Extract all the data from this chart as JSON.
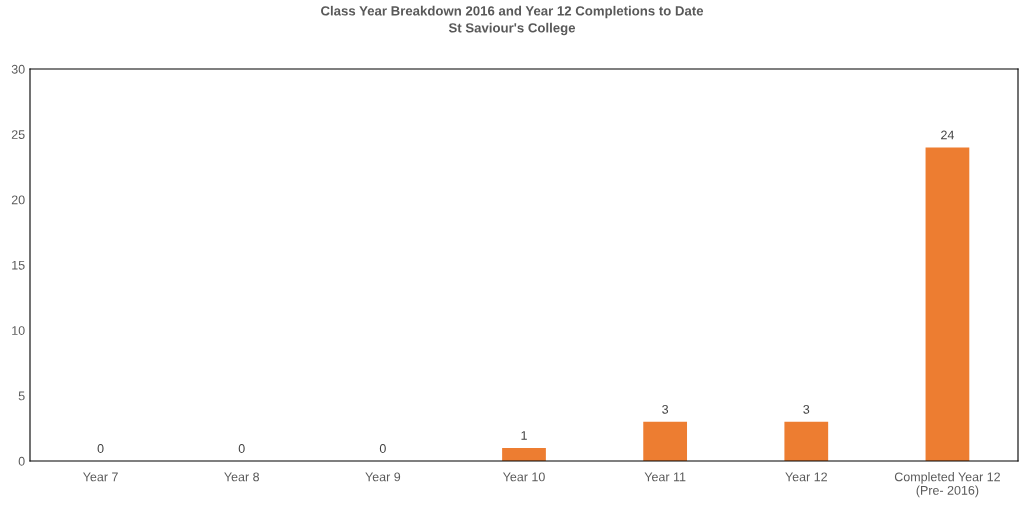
{
  "chart_data": {
    "type": "bar",
    "title": "Class Year Breakdown 2016 and Year 12 Completions to Date",
    "subtitle": "St Saviour's College",
    "categories": [
      "Year 7",
      "Year 8",
      "Year 9",
      "Year 10",
      "Year 11",
      "Year 12",
      "Completed Year 12\n(Pre- 2016)"
    ],
    "values": [
      0,
      0,
      0,
      1,
      3,
      3,
      24
    ],
    "color": "#ed7d31",
    "ylim": [
      0,
      30
    ],
    "yticks": [
      0,
      5,
      10,
      15,
      20,
      25,
      30
    ],
    "grid": false,
    "data_labels": true
  }
}
